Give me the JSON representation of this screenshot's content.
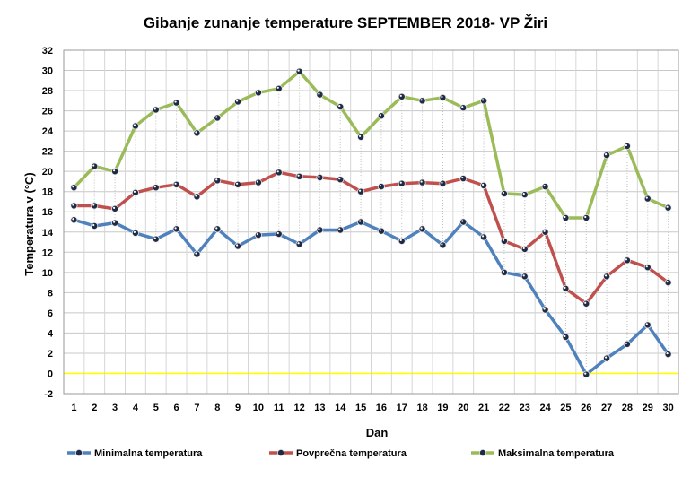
{
  "chart_data": {
    "type": "line",
    "title": "Gibanje  zunanje  temperature SEPTEMBER  2018- VP Žiri",
    "xlabel": "Dan",
    "ylabel": "Temperatura v (°C)",
    "ylim": [
      -2,
      32
    ],
    "yticks": [
      "-2",
      "0",
      "2",
      "4",
      "6",
      "8",
      "10",
      "12",
      "14",
      "16",
      "18",
      "20",
      "22",
      "24",
      "26",
      "28",
      "30",
      "32"
    ],
    "x": [
      "1",
      "2",
      "3",
      "4",
      "5",
      "6",
      "7",
      "8",
      "9",
      "10",
      "11",
      "12",
      "13",
      "14",
      "15",
      "16",
      "17",
      "18",
      "19",
      "20",
      "21",
      "22",
      "23",
      "24",
      "25",
      "26",
      "27",
      "28",
      "29",
      "30"
    ],
    "grid": true,
    "legend_position": "bottom",
    "zero_line_color": "#FFFF00",
    "series": [
      {
        "name": "Minimalna temperatura",
        "color": "#4F81BD",
        "values": [
          15.2,
          14.6,
          14.9,
          13.9,
          13.3,
          14.3,
          11.8,
          14.3,
          12.6,
          13.7,
          13.8,
          12.8,
          14.2,
          14.2,
          15.0,
          14.1,
          13.1,
          14.3,
          12.7,
          15.0,
          13.5,
          10.0,
          9.6,
          6.3,
          3.6,
          -0.1,
          1.5,
          2.9,
          4.8,
          1.9
        ]
      },
      {
        "name": "Povprečna temperatura",
        "color": "#C0504D",
        "values": [
          16.6,
          16.6,
          16.3,
          17.9,
          18.4,
          18.7,
          17.5,
          19.1,
          18.7,
          18.9,
          19.9,
          19.5,
          19.4,
          19.2,
          18.0,
          18.5,
          18.8,
          18.9,
          18.8,
          19.3,
          18.6,
          13.1,
          12.3,
          14.0,
          8.4,
          6.9,
          9.6,
          11.2,
          10.5,
          9.0
        ]
      },
      {
        "name": "Maksimalna temperatura",
        "color": "#9BBB59",
        "values": [
          18.4,
          20.5,
          20.0,
          24.5,
          26.1,
          26.8,
          23.8,
          25.3,
          26.9,
          27.8,
          28.2,
          29.9,
          27.6,
          26.4,
          23.4,
          25.5,
          27.4,
          27.0,
          27.3,
          26.3,
          27.0,
          17.8,
          17.7,
          18.5,
          15.4,
          15.4,
          21.6,
          22.5,
          17.3,
          16.4
        ]
      }
    ]
  }
}
